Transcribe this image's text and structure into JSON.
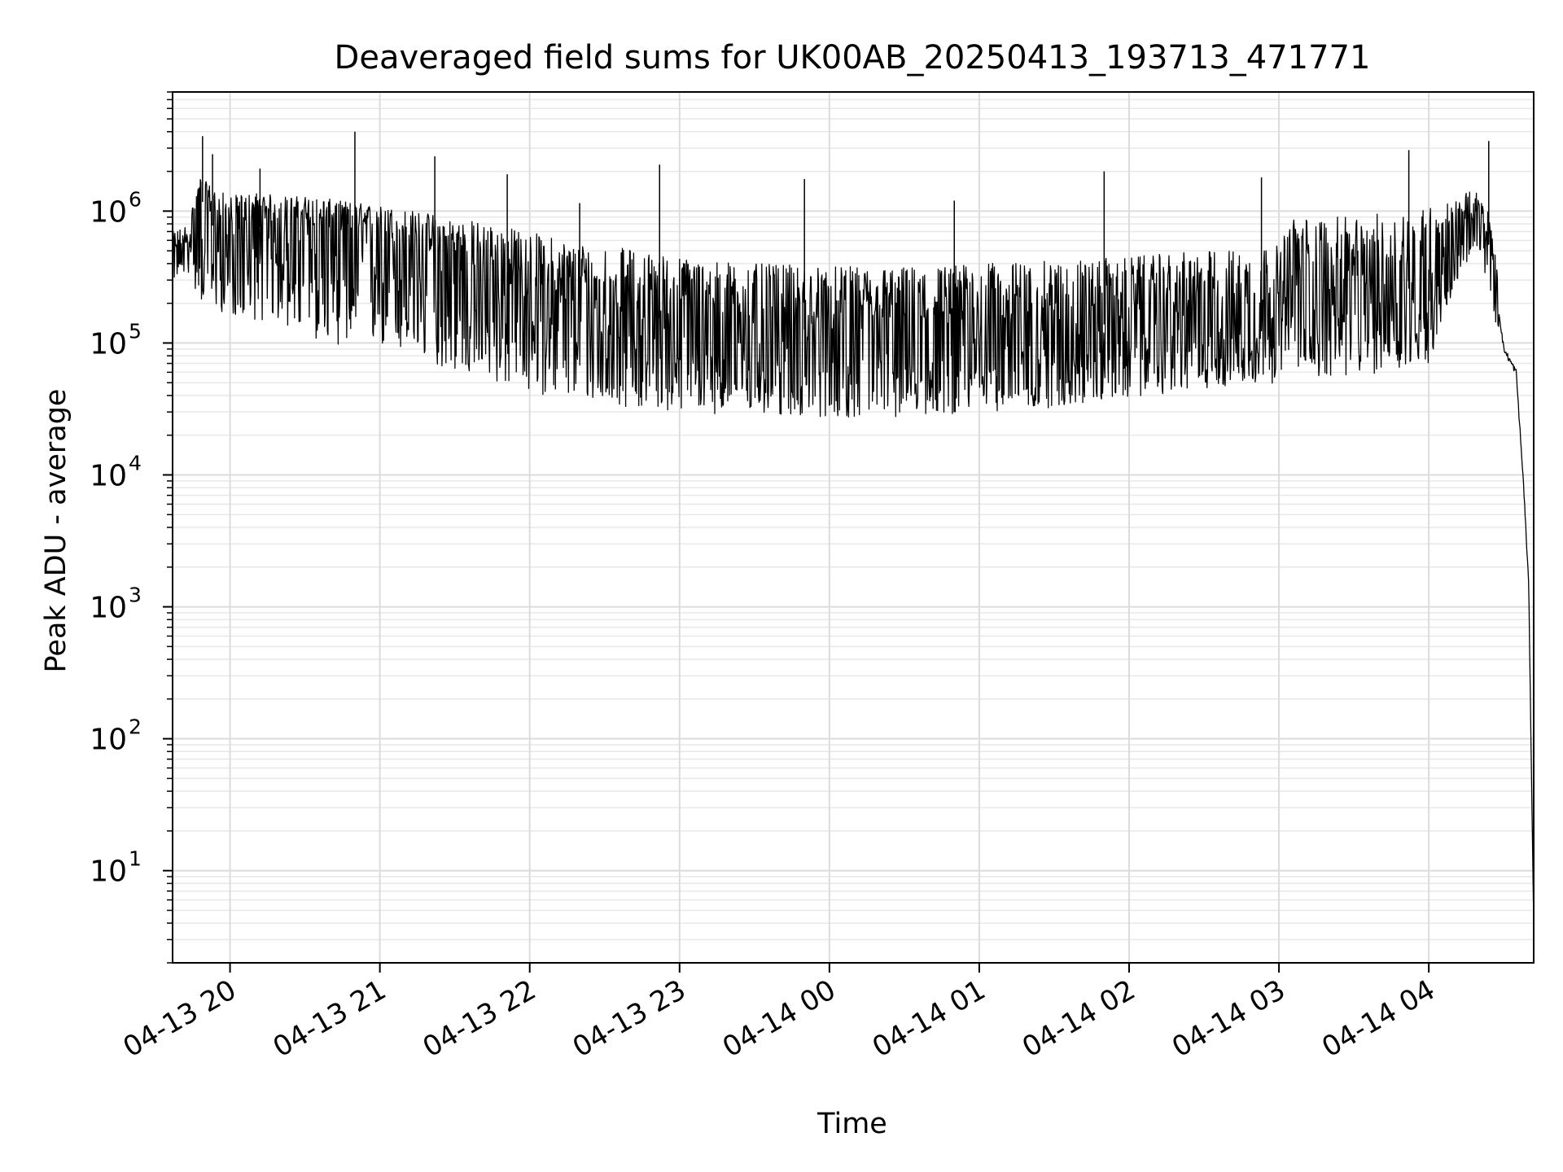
{
  "chart_data": {
    "type": "line",
    "title": "Deaveraged field sums for UK00AB_20250413_193713_471771",
    "xlabel": "Time",
    "ylabel": "Peak ADU - average",
    "yscale": "log",
    "grid": true,
    "legend": "none",
    "xlim": [
      "2025-04-13 19:37",
      "2025-04-14 04:42"
    ],
    "ylim": [
      2,
      8000000
    ],
    "x_ticks": [
      {
        "value": "2025-04-13 20:00",
        "label": "04-13 20"
      },
      {
        "value": "2025-04-13 21:00",
        "label": "04-13 21"
      },
      {
        "value": "2025-04-13 22:00",
        "label": "04-13 22"
      },
      {
        "value": "2025-04-13 23:00",
        "label": "04-13 23"
      },
      {
        "value": "2025-04-14 00:00",
        "label": "04-14 00"
      },
      {
        "value": "2025-04-14 01:00",
        "label": "04-14 01"
      },
      {
        "value": "2025-04-14 02:00",
        "label": "04-14 02"
      },
      {
        "value": "2025-04-14 03:00",
        "label": "04-14 03"
      },
      {
        "value": "2025-04-14 04:00",
        "label": "04-14 04"
      }
    ],
    "y_ticks": [
      {
        "value": 10,
        "base": "10",
        "exp": "1"
      },
      {
        "value": 100,
        "base": "10",
        "exp": "2"
      },
      {
        "value": 1000,
        "base": "10",
        "exp": "3"
      },
      {
        "value": 10000,
        "base": "10",
        "exp": "4"
      },
      {
        "value": 100000,
        "base": "10",
        "exp": "5"
      },
      {
        "value": 1000000,
        "base": "10",
        "exp": "6"
      }
    ],
    "series": [
      {
        "color": "#000000",
        "x": [
          "2025-04-13 19:37",
          "2025-04-13 19:43",
          "2025-04-13 19:48",
          "2025-04-13 19:54",
          "2025-04-13 20:00",
          "2025-04-13 20:10",
          "2025-04-13 20:20",
          "2025-04-13 20:30",
          "2025-04-13 20:45",
          "2025-04-13 21:00",
          "2025-04-13 21:15",
          "2025-04-13 21:30",
          "2025-04-13 21:45",
          "2025-04-13 22:00",
          "2025-04-13 22:15",
          "2025-04-13 22:30",
          "2025-04-13 22:45",
          "2025-04-13 23:00",
          "2025-04-13 23:30",
          "2025-04-14 00:00",
          "2025-04-14 00:30",
          "2025-04-14 01:00",
          "2025-04-14 01:30",
          "2025-04-14 02:00",
          "2025-04-14 02:30",
          "2025-04-14 03:00",
          "2025-04-14 03:05",
          "2025-04-14 03:30",
          "2025-04-14 03:45",
          "2025-04-14 04:00",
          "2025-04-14 04:10",
          "2025-04-14 04:15",
          "2025-04-14 04:20",
          "2025-04-14 04:25",
          "2025-04-14 04:30",
          "2025-04-14 04:35",
          "2025-04-14 04:38",
          "2025-04-14 04:40",
          "2025-04-14 04:42"
        ],
        "y": [
          450000,
          550000,
          1300000,
          700000,
          600000,
          750000,
          800000,
          800000,
          700000,
          650000,
          500000,
          380000,
          300000,
          250000,
          200000,
          170000,
          160000,
          150000,
          130000,
          125000,
          130000,
          135000,
          135000,
          140000,
          150000,
          160000,
          220000,
          230000,
          240000,
          280000,
          450000,
          700000,
          900000,
          500000,
          90000,
          60000,
          8000,
          1500,
          4
        ],
        "band_low": [
          300000,
          350000,
          200000,
          180000,
          160000,
          150000,
          140000,
          110000,
          95000,
          90000,
          75000,
          60000,
          50000,
          42000,
          38000,
          34000,
          32000,
          30000,
          28000,
          27000,
          27000,
          30000,
          32000,
          38000,
          45000,
          50000,
          55000,
          55000,
          60000,
          70000,
          250000,
          400000,
          500000,
          200000,
          60000,
          45000,
          5000,
          900,
          4
        ],
        "band_high": [
          700000,
          800000,
          1800000,
          1500000,
          1300000,
          1400000,
          1300000,
          1300000,
          1200000,
          1100000,
          1000000,
          900000,
          800000,
          700000,
          600000,
          550000,
          500000,
          450000,
          400000,
          380000,
          380000,
          400000,
          420000,
          450000,
          500000,
          550000,
          900000,
          900000,
          1000000,
          1100000,
          1200000,
          1400000,
          1400000,
          900000,
          120000,
          90000,
          12000,
          2000,
          4
        ],
        "spikes": [
          {
            "x": "2025-04-13 19:49",
            "y": 3700000
          },
          {
            "x": "2025-04-13 19:53",
            "y": 2700000
          },
          {
            "x": "2025-04-13 20:12",
            "y": 2100000
          },
          {
            "x": "2025-04-13 20:50",
            "y": 4000000
          },
          {
            "x": "2025-04-13 21:22",
            "y": 2600000
          },
          {
            "x": "2025-04-13 21:51",
            "y": 1900000
          },
          {
            "x": "2025-04-13 22:20",
            "y": 1150000
          },
          {
            "x": "2025-04-13 22:52",
            "y": 2250000
          },
          {
            "x": "2025-04-13 23:50",
            "y": 1750000
          },
          {
            "x": "2025-04-14 00:50",
            "y": 1200000
          },
          {
            "x": "2025-04-14 01:50",
            "y": 2000000
          },
          {
            "x": "2025-04-14 02:53",
            "y": 1800000
          },
          {
            "x": "2025-04-14 03:52",
            "y": 2900000
          },
          {
            "x": "2025-04-14 04:24",
            "y": 3400000
          }
        ]
      }
    ]
  }
}
